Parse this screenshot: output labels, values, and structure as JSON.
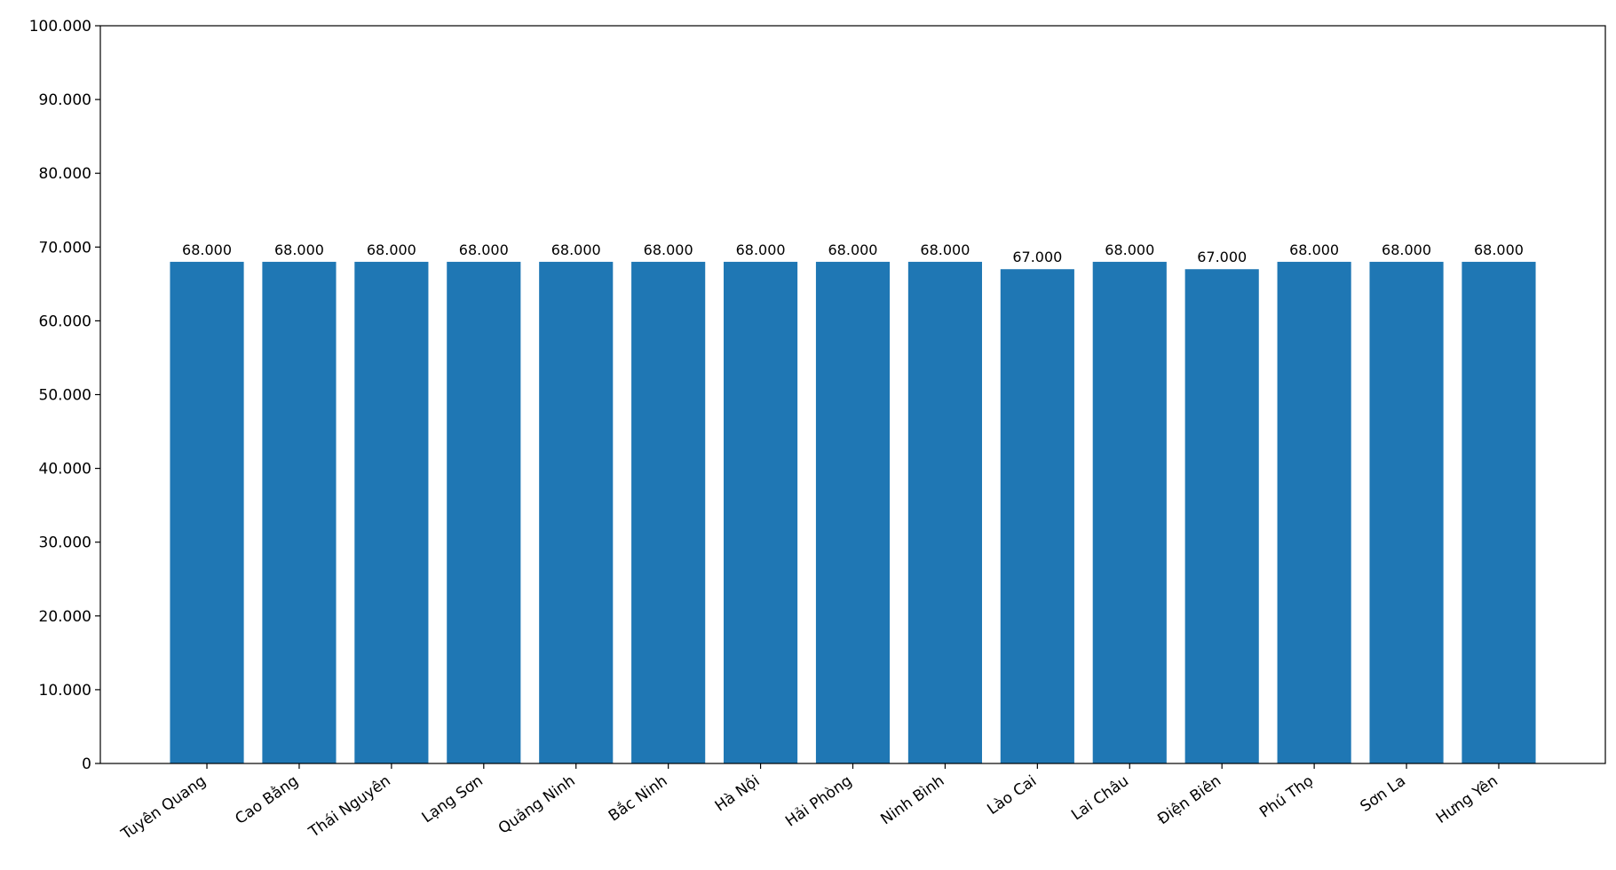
{
  "chart_data": {
    "type": "bar",
    "categories": [
      "Tuyên Quang",
      "Cao Bằng",
      "Thái Nguyên",
      "Lạng Sơn",
      "Quảng Ninh",
      "Bắc Ninh",
      "Hà Nội",
      "Hải Phòng",
      "Ninh Bình",
      "Lào Cai",
      "Lai Châu",
      "Điện Biên",
      "Phú Thọ",
      "Sơn La",
      "Hưng Yên"
    ],
    "values": [
      68000,
      68000,
      68000,
      68000,
      68000,
      68000,
      68000,
      68000,
      68000,
      67000,
      68000,
      67000,
      68000,
      68000,
      68000
    ],
    "value_labels": [
      "68.000",
      "68.000",
      "68.000",
      "68.000",
      "68.000",
      "68.000",
      "68.000",
      "68.000",
      "68.000",
      "67.000",
      "68.000",
      "67.000",
      "68.000",
      "68.000",
      "68.000"
    ],
    "color": "#1f77b4",
    "ylim": [
      0,
      100000
    ],
    "yticks": [
      0,
      {
        "value": 10000,
        "label": "10.000"
      },
      {
        "value": 20000,
        "label": "20.000"
      },
      {
        "value": 30000,
        "label": "30.000"
      },
      {
        "value": 40000,
        "label": "40.000"
      },
      {
        "value": 50000,
        "label": "50.000"
      },
      {
        "value": 60000,
        "label": "60.000"
      },
      {
        "value": 70000,
        "label": "70.000"
      },
      {
        "value": 80000,
        "label": "80.000"
      },
      {
        "value": 90000,
        "label": "90.000"
      },
      {
        "value": 100000,
        "label": "100.000"
      }
    ],
    "grid": false
  }
}
